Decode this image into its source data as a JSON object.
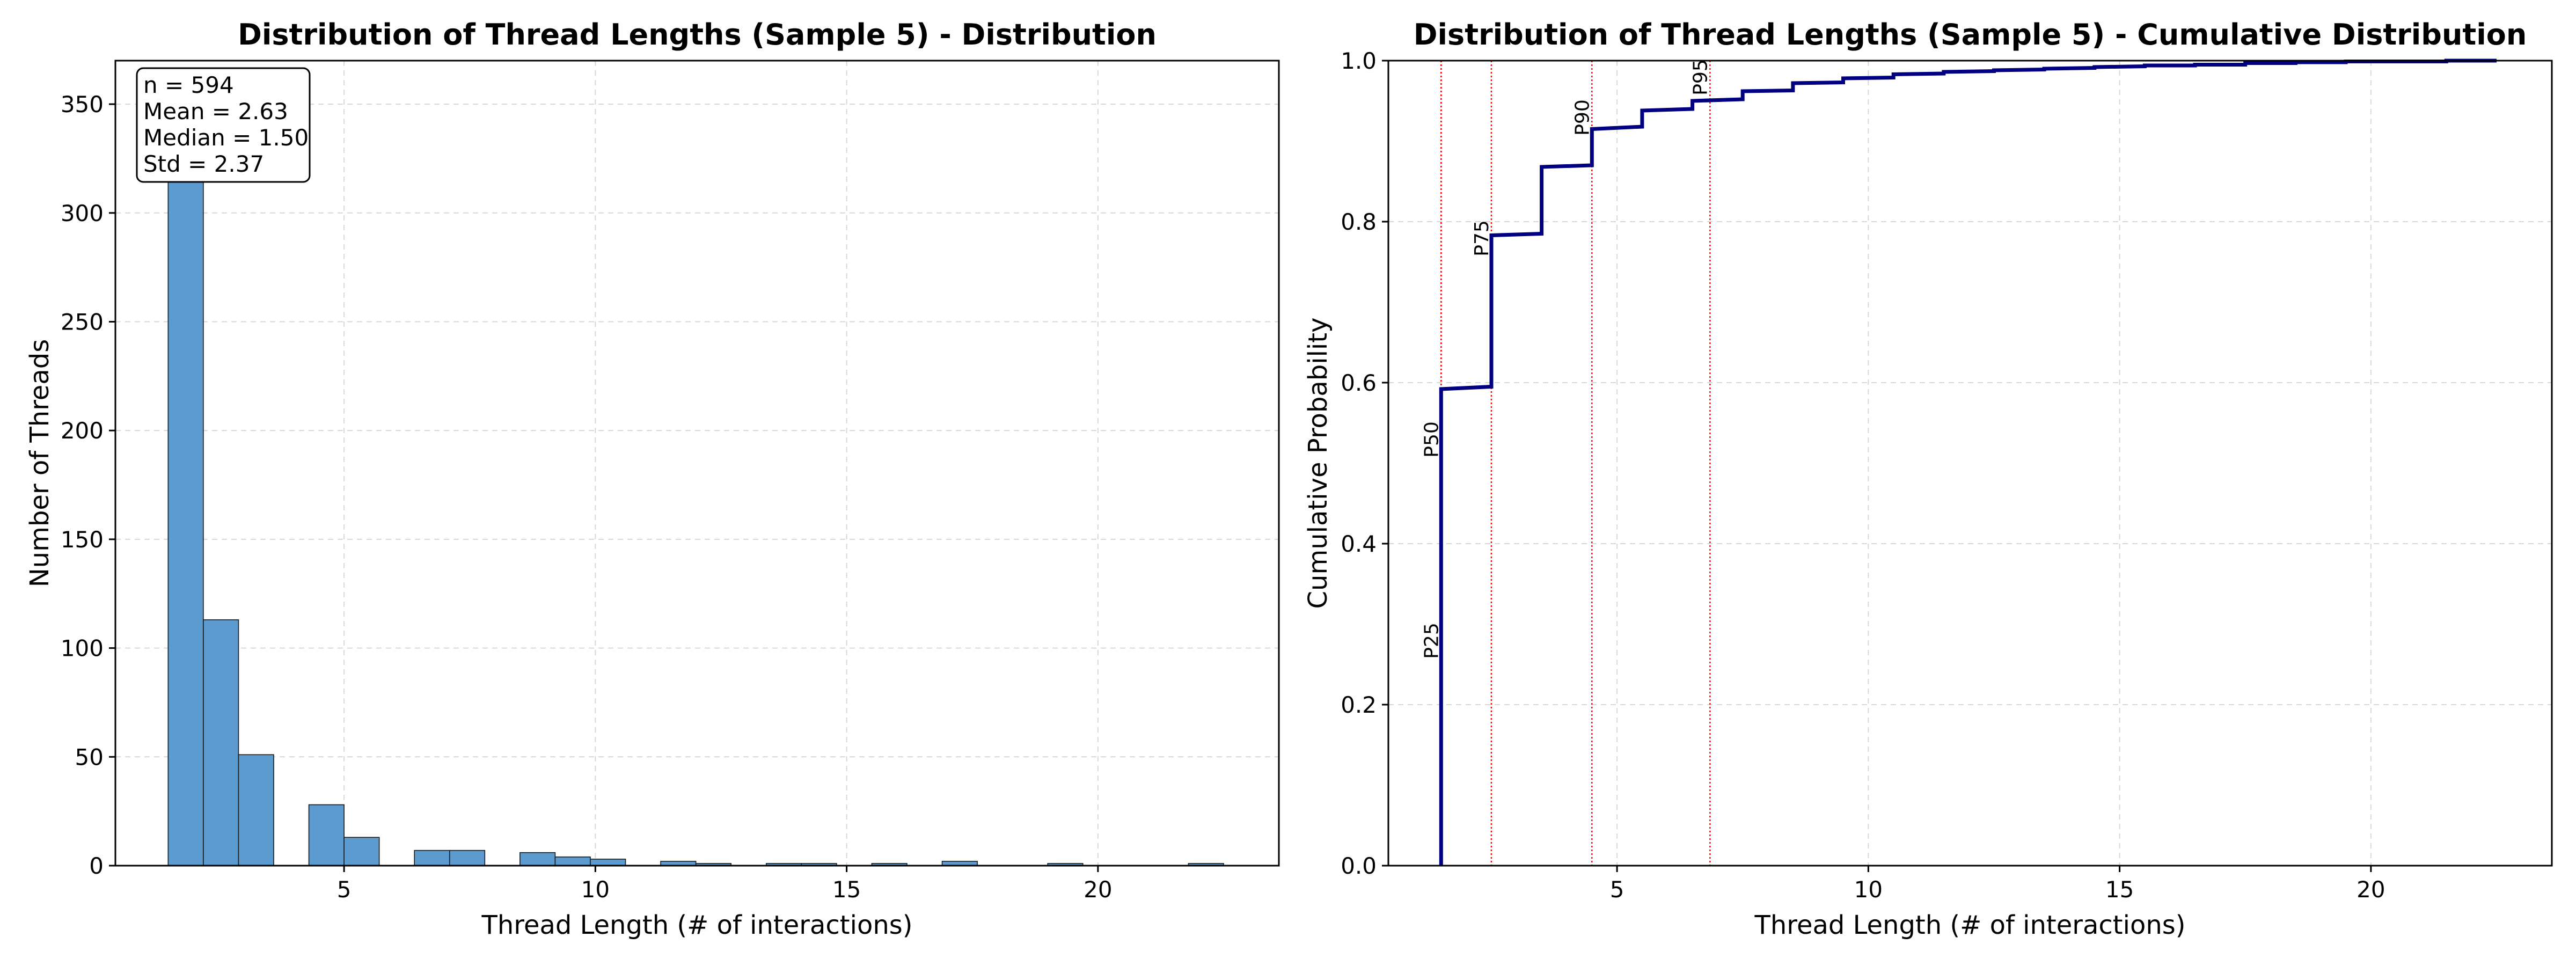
{
  "chart_data": [
    {
      "type": "bar",
      "title": "Distribution of Thread Lengths (Sample 5) - Distribution",
      "xlabel": "Thread Length (# of interactions)",
      "ylabel": "Number of Threads",
      "xlim": [
        0.45,
        23.6
      ],
      "ylim": [
        0,
        370
      ],
      "xticks": [
        5,
        10,
        15,
        20
      ],
      "yticks": [
        0,
        50,
        100,
        150,
        200,
        250,
        300,
        350
      ],
      "grid": true,
      "bar_color": "#5b9bd0",
      "bin_width": 0.7,
      "bins": [
        {
          "x0": 1.5,
          "value": 350
        },
        {
          "x0": 2.2,
          "value": 113
        },
        {
          "x0": 2.9,
          "value": 51
        },
        {
          "x0": 3.6,
          "value": 0
        },
        {
          "x0": 4.3,
          "value": 28
        },
        {
          "x0": 5.0,
          "value": 13
        },
        {
          "x0": 5.7,
          "value": 0
        },
        {
          "x0": 6.4,
          "value": 7
        },
        {
          "x0": 7.1,
          "value": 7
        },
        {
          "x0": 7.8,
          "value": 0
        },
        {
          "x0": 8.5,
          "value": 6
        },
        {
          "x0": 9.2,
          "value": 4
        },
        {
          "x0": 9.9,
          "value": 3
        },
        {
          "x0": 10.6,
          "value": 0
        },
        {
          "x0": 11.3,
          "value": 2
        },
        {
          "x0": 12.0,
          "value": 1
        },
        {
          "x0": 12.7,
          "value": 0
        },
        {
          "x0": 13.4,
          "value": 1
        },
        {
          "x0": 14.1,
          "value": 1
        },
        {
          "x0": 14.8,
          "value": 0
        },
        {
          "x0": 15.5,
          "value": 1
        },
        {
          "x0": 16.2,
          "value": 0
        },
        {
          "x0": 16.9,
          "value": 2
        },
        {
          "x0": 17.6,
          "value": 0
        },
        {
          "x0": 18.3,
          "value": 0
        },
        {
          "x0": 19.0,
          "value": 1
        },
        {
          "x0": 19.7,
          "value": 0
        },
        {
          "x0": 20.4,
          "value": 0
        },
        {
          "x0": 21.1,
          "value": 0
        },
        {
          "x0": 21.8,
          "value": 1
        }
      ],
      "stats": [
        "n = 594",
        "Mean = 2.63",
        "Median = 1.50",
        "Std = 2.37"
      ]
    },
    {
      "type": "line",
      "title": "Distribution of Thread Lengths (Sample 5) - Cumulative Distribution",
      "xlabel": "Thread Length (# of interactions)",
      "ylabel": "Cumulative Probability",
      "xlim": [
        0.45,
        23.6
      ],
      "ylim": [
        0,
        1.0
      ],
      "xticks": [
        5,
        10,
        15,
        20
      ],
      "yticks": [
        0.0,
        0.2,
        0.4,
        0.6,
        0.8,
        1.0
      ],
      "ytick_labels": [
        "0.0",
        "0.2",
        "0.4",
        "0.6",
        "0.8",
        "1.0"
      ],
      "grid": true,
      "line_color": "#000080",
      "percentile_color": "#ff0000",
      "series": [
        {
          "x": [
            1.5,
            1.5,
            2.5,
            2.5,
            3.5,
            3.5,
            4.5,
            4.5,
            5.5,
            5.5,
            6.5,
            6.5,
            7.5,
            7.5,
            8.5,
            8.5,
            9.5,
            9.5,
            10.5,
            10.5,
            11.5,
            11.5,
            12.5,
            12.5,
            13.5,
            13.5,
            14.5,
            14.5,
            15.5,
            15.5,
            16.5,
            16.5,
            17.5,
            17.5,
            18.5,
            18.5,
            19.5,
            19.5,
            20.5,
            20.5,
            21.5,
            21.5,
            22.5
          ],
          "y": [
            0.0,
            0.592,
            0.595,
            0.783,
            0.785,
            0.868,
            0.87,
            0.915,
            0.918,
            0.938,
            0.94,
            0.95,
            0.952,
            0.962,
            0.963,
            0.972,
            0.973,
            0.978,
            0.979,
            0.983,
            0.984,
            0.986,
            0.987,
            0.988,
            0.989,
            0.99,
            0.991,
            0.992,
            0.993,
            0.994,
            0.994,
            0.995,
            0.995,
            0.997,
            0.997,
            0.998,
            0.998,
            0.999,
            0.999,
            0.999,
            0.999,
            1.0,
            1.0
          ]
        }
      ],
      "percentiles": [
        {
          "label": "P25",
          "x": 1.5,
          "label_y": 0.25
        },
        {
          "label": "P50",
          "x": 1.5,
          "label_y": 0.5
        },
        {
          "label": "P75",
          "x": 2.5,
          "label_y": 0.75
        },
        {
          "label": "P90",
          "x": 4.5,
          "label_y": 0.9
        },
        {
          "label": "P95",
          "x": 6.85,
          "label_y": 0.95
        }
      ]
    }
  ]
}
